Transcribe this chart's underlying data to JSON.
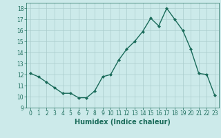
{
  "x": [
    0,
    1,
    2,
    3,
    4,
    5,
    6,
    7,
    8,
    9,
    10,
    11,
    12,
    13,
    14,
    15,
    16,
    17,
    18,
    19,
    20,
    21,
    22,
    23
  ],
  "y": [
    12.1,
    11.8,
    11.3,
    10.8,
    10.3,
    10.3,
    9.9,
    9.9,
    10.5,
    11.8,
    12.0,
    13.3,
    14.3,
    15.0,
    15.9,
    17.1,
    16.4,
    18.0,
    17.0,
    16.0,
    14.3,
    12.1,
    12.0,
    10.1
  ],
  "xlabel": "Humidex (Indice chaleur)",
  "xlim": [
    -0.5,
    23.5
  ],
  "ylim": [
    9,
    18.5
  ],
  "yticks": [
    9,
    10,
    11,
    12,
    13,
    14,
    15,
    16,
    17,
    18
  ],
  "xticks": [
    0,
    1,
    2,
    3,
    4,
    5,
    6,
    7,
    8,
    9,
    10,
    11,
    12,
    13,
    14,
    15,
    16,
    17,
    18,
    19,
    20,
    21,
    22,
    23
  ],
  "line_color": "#1a6b5a",
  "marker_color": "#1a6b5a",
  "bg_color": "#cceaea",
  "grid_color": "#aacccc",
  "font_color": "#1a6b5a",
  "label_fontsize": 6.0,
  "tick_fontsize": 5.5,
  "xlabel_fontsize": 7.0
}
